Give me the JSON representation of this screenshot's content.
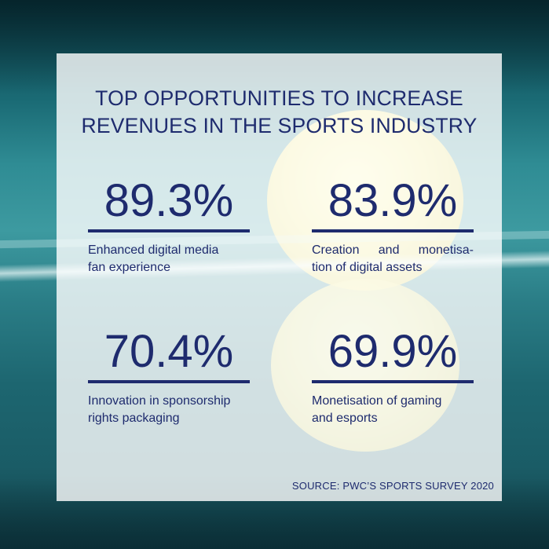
{
  "title_line1": "TOP OPPORTUNITIES TO INCREASE",
  "title_line2": "REVENUES IN THE SPORTS INDUSTRY",
  "stats": [
    {
      "value": "89.3%",
      "line1": "Enhanced digital media",
      "line2": "fan experience"
    },
    {
      "value": "83.9%",
      "line1": "Creation and monetisa-",
      "line2": "tion of digital assets"
    },
    {
      "value": "70.4%",
      "line1": "Innovation in sponsorship",
      "line2": "rights packaging"
    },
    {
      "value": "69.9%",
      "line1": "Monetisation of gaming",
      "line2": "and esports"
    }
  ],
  "source": "SOURCE: PWC’S SPORTS SURVEY 2020",
  "colors": {
    "text": "#1e2b6e",
    "panel": "#ffffff",
    "ball": "#eee57a",
    "background": "#2f8c94"
  }
}
